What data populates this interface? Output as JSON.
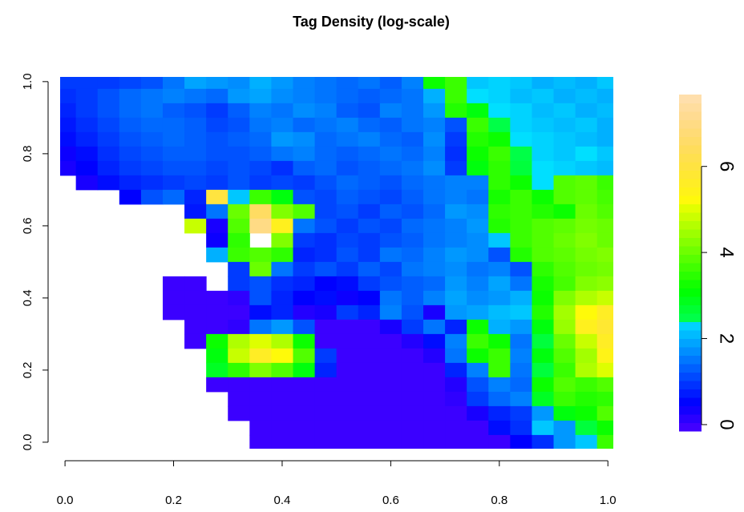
{
  "chart_data": {
    "type": "heatmap",
    "title": "Tag Density (log-scale)",
    "colormap": "topo",
    "xlim": [
      -0.009,
      1.01
    ],
    "ylim": [
      -0.018,
      1.013
    ],
    "zlim": [
      -0.15,
      7.67
    ],
    "xticks": [
      {
        "value": 0,
        "label": "0.0"
      },
      {
        "value": 0.2,
        "label": "0.2"
      },
      {
        "value": 0.4,
        "label": "0.4"
      },
      {
        "value": 0.6,
        "label": "0.6"
      },
      {
        "value": 0.8,
        "label": "0.8"
      },
      {
        "value": 1,
        "label": "1.0"
      }
    ],
    "yticks": [
      {
        "value": 0,
        "label": "0.0"
      },
      {
        "value": 0.2,
        "label": "0.2"
      },
      {
        "value": 0.4,
        "label": "0.4"
      },
      {
        "value": 0.6,
        "label": "0.6"
      },
      {
        "value": 0.8,
        "label": "0.8"
      },
      {
        "value": 1,
        "label": "1.0"
      }
    ],
    "zticks": [
      0,
      2,
      4,
      6
    ],
    "x": [
      0,
      0.04,
      0.08,
      0.12,
      0.16,
      0.2,
      0.24,
      0.28,
      0.32,
      0.36,
      0.4,
      0.44,
      0.48,
      0.52,
      0.56,
      0.6,
      0.64,
      0.68,
      0.72,
      0.76,
      0.8,
      0.84,
      0.88,
      0.92,
      0.96,
      1
    ],
    "y": [
      1,
      0.96,
      0.92,
      0.88,
      0.84,
      0.8,
      0.76,
      0.72,
      0.68,
      0.64,
      0.6,
      0.56,
      0.52,
      0.48,
      0.44,
      0.4,
      0.36,
      0.32,
      0.28,
      0.24,
      0.2,
      0.16,
      0.12,
      0.08,
      0.04,
      0
    ],
    "z": [
      [
        1.0,
        1.0,
        1.0,
        1.1,
        1.2,
        1.5,
        1.9,
        1.8,
        1.7,
        2.0,
        1.8,
        1.6,
        1.5,
        1.4,
        1.5,
        1.3,
        1.6,
        3.2,
        3.6,
        2.2,
        2.3,
        2.2,
        2.0,
        2.1,
        2.0,
        2.2
      ],
      [
        0.9,
        1.0,
        1.2,
        1.4,
        1.5,
        1.6,
        1.5,
        1.4,
        1.8,
        1.9,
        1.7,
        1.6,
        1.5,
        1.4,
        1.3,
        1.4,
        1.5,
        2.0,
        3.6,
        2.4,
        2.3,
        2.1,
        2.2,
        2.0,
        2.1,
        2.0
      ],
      [
        0.8,
        1.0,
        1.2,
        1.4,
        1.5,
        1.3,
        1.2,
        1.0,
        1.3,
        1.6,
        1.5,
        1.7,
        1.6,
        1.3,
        1.2,
        1.6,
        1.5,
        1.8,
        3.4,
        3.0,
        2.4,
        2.3,
        2.1,
        2.2,
        2.0,
        2.1
      ],
      [
        0.7,
        0.9,
        1.1,
        1.3,
        1.4,
        1.4,
        1.3,
        1.1,
        1.2,
        1.5,
        1.6,
        1.4,
        1.5,
        1.6,
        1.4,
        1.3,
        1.5,
        1.6,
        1.2,
        3.6,
        2.5,
        2.3,
        2.2,
        2.1,
        2.2,
        2.0
      ],
      [
        0.6,
        0.8,
        1.0,
        1.2,
        1.3,
        1.4,
        1.3,
        1.2,
        1.3,
        1.4,
        1.8,
        1.7,
        1.4,
        1.5,
        1.6,
        1.4,
        1.3,
        1.7,
        1.0,
        3.4,
        3.2,
        2.4,
        2.3,
        2.2,
        2.1,
        2.0
      ],
      [
        0.4,
        0.6,
        0.9,
        1.1,
        1.2,
        1.3,
        1.3,
        1.2,
        1.2,
        1.3,
        1.5,
        1.6,
        1.4,
        1.3,
        1.4,
        1.5,
        1.4,
        1.6,
        0.9,
        3.2,
        3.6,
        2.5,
        2.3,
        2.2,
        2.4,
        2.2
      ],
      [
        0.3,
        0.5,
        0.8,
        1.0,
        1.1,
        1.2,
        1.2,
        1.1,
        1.2,
        1.1,
        0.9,
        1.3,
        1.4,
        1.2,
        1.3,
        1.4,
        1.5,
        1.7,
        1.0,
        3.0,
        3.5,
        2.6,
        2.4,
        2.3,
        2.2,
        2.1
      ],
      [
        null,
        0.3,
        0.6,
        0.8,
        0.9,
        1.0,
        1.1,
        1.0,
        1.2,
        1.0,
        1.1,
        1.0,
        1.2,
        1.4,
        1.3,
        1.2,
        1.4,
        1.5,
        1.6,
        1.6,
        3.5,
        3.2,
        2.4,
        3.8,
        3.9,
        3.6
      ],
      [
        null,
        null,
        null,
        0.5,
        1.2,
        1.4,
        0.8,
        6.0,
        2.2,
        3.6,
        3.0,
        1.2,
        1.1,
        1.3,
        1.2,
        1.1,
        1.3,
        1.5,
        1.6,
        1.5,
        3.3,
        3.6,
        3.2,
        3.8,
        3.9,
        3.7
      ],
      [
        null,
        null,
        null,
        null,
        null,
        null,
        0.7,
        1.5,
        4.0,
        6.5,
        4.2,
        3.8,
        1.1,
        1.2,
        1.0,
        1.3,
        1.2,
        1.4,
        1.8,
        1.7,
        3.5,
        3.6,
        3.4,
        3.2,
        4.0,
        3.8
      ],
      [
        null,
        null,
        null,
        null,
        null,
        null,
        4.8,
        0.3,
        3.8,
        7.0,
        5.5,
        1.5,
        1.2,
        1.0,
        1.2,
        1.1,
        1.4,
        1.5,
        1.6,
        1.8,
        3.4,
        3.6,
        3.8,
        3.9,
        4.1,
        4.0
      ],
      [
        null,
        null,
        null,
        null,
        null,
        null,
        null,
        0.4,
        3.5,
        null,
        4.2,
        1.0,
        0.9,
        1.1,
        1.0,
        1.2,
        1.3,
        1.5,
        1.6,
        1.7,
        2.2,
        3.6,
        3.8,
        4.0,
        4.2,
        4.0
      ],
      [
        null,
        null,
        null,
        null,
        null,
        null,
        null,
        2.0,
        3.6,
        3.8,
        3.5,
        0.8,
        0.9,
        1.2,
        1.0,
        1.5,
        1.4,
        1.6,
        1.8,
        1.7,
        1.2,
        3.4,
        3.8,
        3.9,
        4.1,
        4.2
      ],
      [
        null,
        null,
        null,
        null,
        null,
        null,
        null,
        null,
        1.0,
        4.0,
        1.5,
        1.0,
        1.2,
        1.0,
        1.3,
        1.1,
        1.5,
        1.6,
        1.7,
        1.5,
        1.6,
        1.2,
        3.5,
        3.8,
        4.0,
        4.1
      ],
      [
        null,
        null,
        null,
        null,
        null,
        0.0,
        0.0,
        null,
        1.0,
        1.2,
        0.9,
        0.8,
        0.5,
        0.6,
        1.0,
        1.2,
        1.3,
        1.4,
        1.8,
        1.6,
        1.9,
        1.5,
        3.3,
        3.7,
        4.2,
        4.3
      ],
      [
        null,
        null,
        null,
        null,
        null,
        0.0,
        0.0,
        0.0,
        0.1,
        1.2,
        0.8,
        0.5,
        0.6,
        0.4,
        0.5,
        1.5,
        1.3,
        1.6,
        1.9,
        1.7,
        1.8,
        2.0,
        3.2,
        4.2,
        4.6,
        4.8
      ],
      [
        null,
        null,
        null,
        null,
        null,
        0.0,
        0.0,
        0.0,
        0.0,
        0.6,
        0.8,
        0.2,
        0.3,
        1.0,
        0.8,
        1.6,
        1.2,
        0.3,
        1.8,
        1.9,
        2.1,
        2.2,
        3.4,
        4.5,
        5.2,
        5.6
      ],
      [
        null,
        null,
        null,
        null,
        null,
        null,
        0.0,
        0.0,
        0.1,
        1.5,
        1.8,
        1.2,
        0.0,
        0.0,
        0.0,
        0.3,
        1.0,
        1.5,
        0.8,
        3.2,
        2.0,
        1.8,
        3.0,
        4.4,
        5.5,
        5.8
      ],
      [
        null,
        null,
        null,
        null,
        null,
        null,
        0.0,
        3.2,
        4.6,
        5.0,
        4.6,
        3.2,
        0.0,
        0.0,
        0.0,
        0.0,
        0.2,
        0.6,
        1.6,
        3.6,
        3.2,
        1.5,
        2.6,
        4.0,
        4.8,
        5.6
      ],
      [
        null,
        null,
        null,
        null,
        null,
        null,
        null,
        3.0,
        4.8,
        5.6,
        5.2,
        3.8,
        1.0,
        0.0,
        0.0,
        0.0,
        0.0,
        0.2,
        1.5,
        3.2,
        3.6,
        1.6,
        3.0,
        3.8,
        4.5,
        5.4
      ],
      [
        null,
        null,
        null,
        null,
        null,
        null,
        null,
        2.8,
        3.5,
        4.2,
        3.8,
        3.0,
        0.8,
        0.0,
        0.0,
        0.0,
        0.0,
        0.0,
        0.8,
        1.6,
        3.6,
        1.5,
        2.6,
        3.6,
        4.6,
        5.0
      ],
      [
        null,
        null,
        null,
        null,
        null,
        null,
        null,
        0.0,
        0.0,
        0.0,
        0.0,
        0.0,
        0.0,
        0.0,
        0.0,
        0.0,
        0.0,
        0.0,
        0.2,
        1.2,
        1.6,
        1.4,
        3.2,
        3.8,
        3.6,
        3.8
      ],
      [
        null,
        null,
        null,
        null,
        null,
        null,
        null,
        null,
        0.0,
        0.0,
        0.0,
        0.0,
        0.0,
        0.0,
        0.0,
        0.0,
        0.0,
        0.0,
        0.1,
        1.0,
        1.4,
        1.6,
        2.8,
        3.6,
        3.4,
        3.5
      ],
      [
        null,
        null,
        null,
        null,
        null,
        null,
        null,
        null,
        0.0,
        0.0,
        0.0,
        0.0,
        0.0,
        0.0,
        0.0,
        0.0,
        0.0,
        0.0,
        0.0,
        0.3,
        0.8,
        1.0,
        1.8,
        3.0,
        3.2,
        3.8
      ],
      [
        null,
        null,
        null,
        null,
        null,
        null,
        null,
        null,
        null,
        0.0,
        0.0,
        0.0,
        0.0,
        0.0,
        0.0,
        0.0,
        0.0,
        0.0,
        0.0,
        0.0,
        0.6,
        0.9,
        2.2,
        1.8,
        2.6,
        3.2
      ],
      [
        null,
        null,
        null,
        null,
        null,
        null,
        null,
        null,
        null,
        0.0,
        0.0,
        0.0,
        0.0,
        0.0,
        0.0,
        0.0,
        0.0,
        0.0,
        0.0,
        0.0,
        0.0,
        0.5,
        0.9,
        1.8,
        2.2,
        3.6
      ]
    ]
  }
}
